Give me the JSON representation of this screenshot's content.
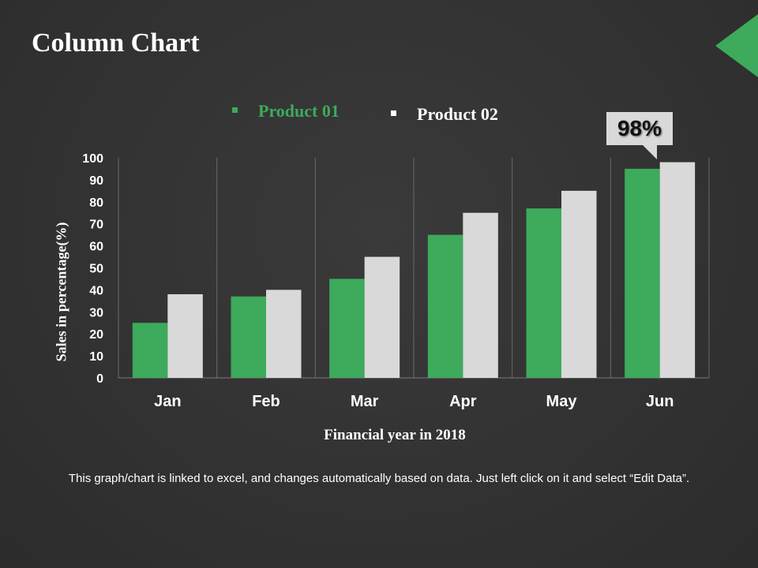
{
  "title": "Column Chart",
  "footnote": "This graph/chart is linked to excel, and changes automatically based on data. Just left click on it and select “Edit Data”.",
  "callout": "98%",
  "colors": {
    "product01": "#3daa5c",
    "product02": "#d9d9d9",
    "background": "#333333",
    "accent": "#3daa5c"
  },
  "chart_data": {
    "type": "bar",
    "title": "",
    "xlabel": "Financial year in 2018",
    "ylabel": "Sales in percentage(%)",
    "ylim": [
      0,
      100
    ],
    "yticks": [
      0,
      10,
      20,
      30,
      40,
      50,
      60,
      70,
      80,
      90,
      100
    ],
    "categories": [
      "Jan",
      "Feb",
      "Mar",
      "Apr",
      "May",
      "Jun"
    ],
    "series": [
      {
        "name": "Product 01",
        "values": [
          25,
          37,
          45,
          65,
          77,
          95
        ]
      },
      {
        "name": "Product 02",
        "values": [
          38,
          40,
          55,
          75,
          85,
          98
        ]
      }
    ],
    "grid": "vertical category separators",
    "legend": "top",
    "annotation": "98%"
  }
}
